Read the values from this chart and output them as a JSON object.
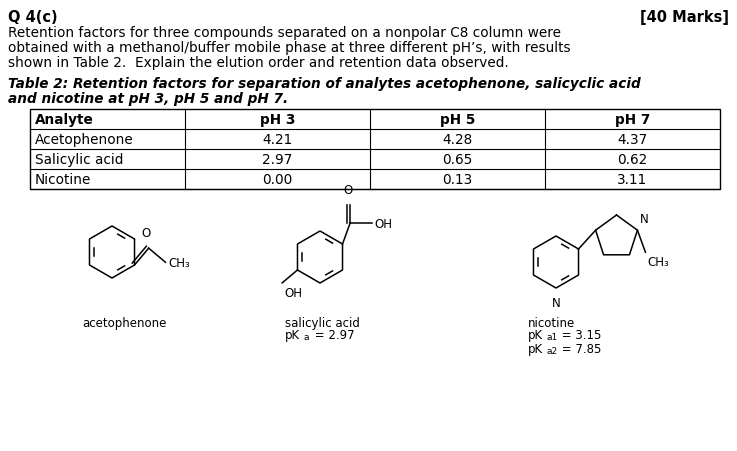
{
  "title_left": "Q 4(c)",
  "title_right": "[40 Marks]",
  "body_lines": [
    "Retention factors for three compounds separated on a nonpolar C8 column were",
    "obtained with a methanol/buffer mobile phase at three different pH’s, with results",
    "shown in Table 2.  Explain the elution order and retention data observed."
  ],
  "caption_lines": [
    "Table 2: Retention factors for separation of analytes acetophenone, salicyclic acid",
    "and nicotine at pH 3, pH 5 and pH 7."
  ],
  "table_headers": [
    "Analyte",
    "pH 3",
    "pH 5",
    "pH 7"
  ],
  "table_rows": [
    [
      "Acetophenone",
      "4.21",
      "4.28",
      "4.37"
    ],
    [
      "Salicylic acid",
      "2.97",
      "0.65",
      "0.62"
    ],
    [
      "Nicotine",
      "0.00",
      "0.13",
      "3.11"
    ]
  ],
  "bg_color": "#ffffff",
  "text_color": "#000000",
  "font_body": 9.8,
  "font_title": 10.5,
  "font_table": 9.8,
  "font_caption": 9.8,
  "font_struct": 8.5,
  "font_struct_sub": 6.5
}
